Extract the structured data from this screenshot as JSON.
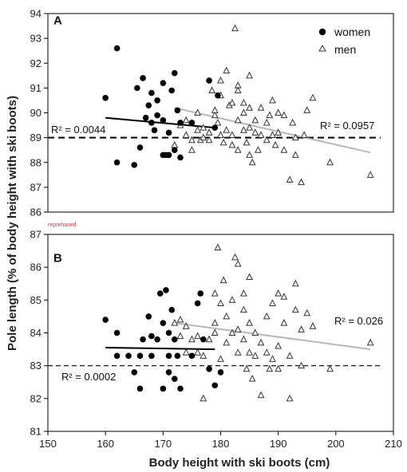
{
  "figure": {
    "ylabel": "Pole length (% of body height with ski boots)",
    "xlabel": "Body height with ski boots (cm)",
    "stamp": "reprehased",
    "legend": [
      {
        "name": "women",
        "marker": "filled-circle",
        "color": "#000000"
      },
      {
        "name": "men",
        "marker": "open-triangle",
        "color": "#333333"
      }
    ]
  },
  "chart_data": [
    {
      "type": "scatter",
      "panel": "A",
      "xlim": [
        150,
        210
      ],
      "ylim": [
        86,
        94
      ],
      "y_ticks": [
        86,
        87,
        88,
        89,
        90,
        91,
        92,
        93,
        94
      ],
      "x_ticks": [],
      "reference_line": {
        "y": 89,
        "style": "dashed"
      },
      "series": [
        {
          "name": "women",
          "marker": "filled-circle",
          "color": "#000000",
          "points": [
            [
              160,
              90.6
            ],
            [
              162,
              92.6
            ],
            [
              162,
              88.0
            ],
            [
              165,
              87.9
            ],
            [
              166,
              88.6
            ],
            [
              167,
              89.8
            ],
            [
              167.5,
              90.3
            ],
            [
              168,
              90.8
            ],
            [
              168,
              89.6
            ],
            [
              168.5,
              89.3
            ],
            [
              169,
              90.5
            ],
            [
              169,
              89.9
            ],
            [
              170,
              91.2
            ],
            [
              170,
              89.7
            ],
            [
              170,
              88.3
            ],
            [
              170.5,
              88.3
            ],
            [
              171,
              89.2
            ],
            [
              171,
              88.3
            ],
            [
              171.5,
              90.9
            ],
            [
              172,
              91.6
            ],
            [
              172,
              88.5
            ],
            [
              172.5,
              90.1
            ],
            [
              173,
              89.6
            ],
            [
              173,
              88.2
            ],
            [
              175,
              89.6
            ],
            [
              178,
              91.3
            ],
            [
              179,
              89.4
            ],
            [
              179.5,
              90.7
            ],
            [
              165.5,
              91.0
            ],
            [
              166.5,
              91.4
            ]
          ]
        },
        {
          "name": "men",
          "marker": "open-triangle",
          "color": "#333333",
          "points": [
            [
              172,
              88.7
            ],
            [
              173,
              89.5
            ],
            [
              174,
              89.7
            ],
            [
              174,
              89.1
            ],
            [
              175,
              88.9
            ],
            [
              175,
              88.5
            ],
            [
              176,
              90.0
            ],
            [
              176,
              89.3
            ],
            [
              176.5,
              88.9
            ],
            [
              177,
              89.4
            ],
            [
              177,
              89.0
            ],
            [
              178,
              88.9
            ],
            [
              178,
              89.2
            ],
            [
              178.5,
              90.9
            ],
            [
              179,
              89.9
            ],
            [
              179,
              90.1
            ],
            [
              179.5,
              89.6
            ],
            [
              180,
              91.3
            ],
            [
              180,
              90.7
            ],
            [
              180,
              89.1
            ],
            [
              180.5,
              88.8
            ],
            [
              181,
              91.7
            ],
            [
              181,
              89.3
            ],
            [
              181.5,
              90.3
            ],
            [
              182,
              90.4
            ],
            [
              182,
              89.1
            ],
            [
              182,
              88.7
            ],
            [
              182.5,
              93.4
            ],
            [
              183,
              91.1
            ],
            [
              183,
              90.9
            ],
            [
              183,
              89.7
            ],
            [
              183,
              88.5
            ],
            [
              184,
              90.4
            ],
            [
              184,
              90.0
            ],
            [
              184,
              89.3
            ],
            [
              184.5,
              88.8
            ],
            [
              185,
              91.5
            ],
            [
              185,
              90.2
            ],
            [
              185,
              89.4
            ],
            [
              185,
              88.3
            ],
            [
              185.5,
              88.0
            ],
            [
              186,
              89.7
            ],
            [
              186,
              89.2
            ],
            [
              186.5,
              88.5
            ],
            [
              187,
              90.2
            ],
            [
              187,
              89.1
            ],
            [
              188,
              89.6
            ],
            [
              188,
              88.9
            ],
            [
              188.5,
              89.9
            ],
            [
              189,
              90.5
            ],
            [
              189,
              89.1
            ],
            [
              189.5,
              88.7
            ],
            [
              190,
              90.0
            ],
            [
              190,
              89.2
            ],
            [
              191,
              89.9
            ],
            [
              191,
              88.5
            ],
            [
              192,
              87.3
            ],
            [
              192.5,
              89.6
            ],
            [
              193,
              89.0
            ],
            [
              193,
              88.3
            ],
            [
              194,
              87.2
            ],
            [
              194.5,
              89.1
            ],
            [
              195,
              90.1
            ],
            [
              196,
              90.6
            ],
            [
              199,
              88.0
            ],
            [
              206,
              87.5
            ]
          ]
        }
      ],
      "fit_lines": [
        {
          "series": "women",
          "x": [
            160,
            179
          ],
          "y": [
            89.8,
            89.4
          ],
          "r2_label": "R² = 0.0044",
          "color": "#000000"
        },
        {
          "series": "men",
          "x": [
            172,
            206
          ],
          "y": [
            90.2,
            88.4
          ],
          "r2_label": "R² = 0.0957",
          "color": "#b8b8b8"
        }
      ]
    },
    {
      "type": "scatter",
      "panel": "B",
      "xlim": [
        150,
        210
      ],
      "ylim": [
        81,
        87
      ],
      "y_ticks": [
        81,
        82,
        83,
        84,
        85,
        86,
        87
      ],
      "x_ticks": [
        150,
        160,
        170,
        180,
        190,
        200,
        210
      ],
      "reference_line": {
        "y": 83,
        "style": "dashed"
      },
      "series": [
        {
          "name": "women",
          "marker": "filled-circle",
          "color": "#000000",
          "points": [
            [
              160,
              84.4
            ],
            [
              162,
              84.0
            ],
            [
              162,
              83.3
            ],
            [
              164,
              83.3
            ],
            [
              165,
              82.8
            ],
            [
              166,
              82.3
            ],
            [
              166,
              83.3
            ],
            [
              166.5,
              83.8
            ],
            [
              167.5,
              84.5
            ],
            [
              168,
              83.3
            ],
            [
              168,
              83.9
            ],
            [
              169,
              83.8
            ],
            [
              169.5,
              85.2
            ],
            [
              170,
              84.3
            ],
            [
              170,
              82.3
            ],
            [
              170.5,
              85.3
            ],
            [
              171,
              82.8
            ],
            [
              171,
              83.3
            ],
            [
              171,
              84.0
            ],
            [
              171.5,
              84.7
            ],
            [
              172,
              82.6
            ],
            [
              172,
              83.8
            ],
            [
              172.5,
              83.3
            ],
            [
              173,
              82.3
            ],
            [
              175,
              83.3
            ],
            [
              176.5,
              85.2
            ],
            [
              177,
              83.8
            ],
            [
              178,
              82.9
            ],
            [
              179,
              82.4
            ],
            [
              180,
              82.8
            ],
            [
              176,
              84.9
            ]
          ]
        },
        {
          "name": "men",
          "marker": "open-triangle",
          "color": "#333333",
          "points": [
            [
              172,
              84.3
            ],
            [
              173,
              84.4
            ],
            [
              173,
              83.9
            ],
            [
              174,
              83.4
            ],
            [
              174,
              84.2
            ],
            [
              175,
              83.8
            ],
            [
              176,
              83.4
            ],
            [
              176,
              83.9
            ],
            [
              177,
              82.0
            ],
            [
              177,
              83.3
            ],
            [
              178,
              83.8
            ],
            [
              179,
              85.2
            ],
            [
              179,
              84.3
            ],
            [
              179,
              84.0
            ],
            [
              179.5,
              86.6
            ],
            [
              180,
              84.9
            ],
            [
              180,
              83.2
            ],
            [
              180.5,
              85.6
            ],
            [
              181,
              84.5
            ],
            [
              181,
              83.7
            ],
            [
              182,
              85.0
            ],
            [
              182,
              84.0
            ],
            [
              182.5,
              86.3
            ],
            [
              183,
              86.1
            ],
            [
              183,
              84.1
            ],
            [
              183,
              83.4
            ],
            [
              184,
              85.2
            ],
            [
              184,
              84.7
            ],
            [
              184,
              83.8
            ],
            [
              184.5,
              82.9
            ],
            [
              185,
              85.7
            ],
            [
              185,
              84.3
            ],
            [
              185,
              83.4
            ],
            [
              185.5,
              82.6
            ],
            [
              186,
              84.0
            ],
            [
              186,
              83.3
            ],
            [
              187,
              83.7
            ],
            [
              187,
              82.1
            ],
            [
              188,
              84.5
            ],
            [
              188,
              83.4
            ],
            [
              188.5,
              82.9
            ],
            [
              189,
              83.2
            ],
            [
              189,
              84.9
            ],
            [
              190,
              85.2
            ],
            [
              190,
              83.6
            ],
            [
              190,
              82.9
            ],
            [
              191,
              85.1
            ],
            [
              191,
              84.3
            ],
            [
              192,
              83.3
            ],
            [
              192,
              82.0
            ],
            [
              193,
              85.5
            ],
            [
              193,
              84.7
            ],
            [
              194,
              84.1
            ],
            [
              194,
              83.0
            ],
            [
              195,
              84.6
            ],
            [
              196,
              84.2
            ],
            [
              199,
              82.9
            ],
            [
              206,
              83.7
            ]
          ]
        }
      ],
      "fit_lines": [
        {
          "series": "women",
          "x": [
            160,
            179
          ],
          "y": [
            83.55,
            83.5
          ],
          "r2_label": "R² = 0.0002",
          "color": "#000000"
        },
        {
          "series": "men",
          "x": [
            172,
            206
          ],
          "y": [
            84.3,
            83.5
          ],
          "r2_label": "R² = 0.026",
          "color": "#b8b8b8"
        }
      ]
    }
  ]
}
